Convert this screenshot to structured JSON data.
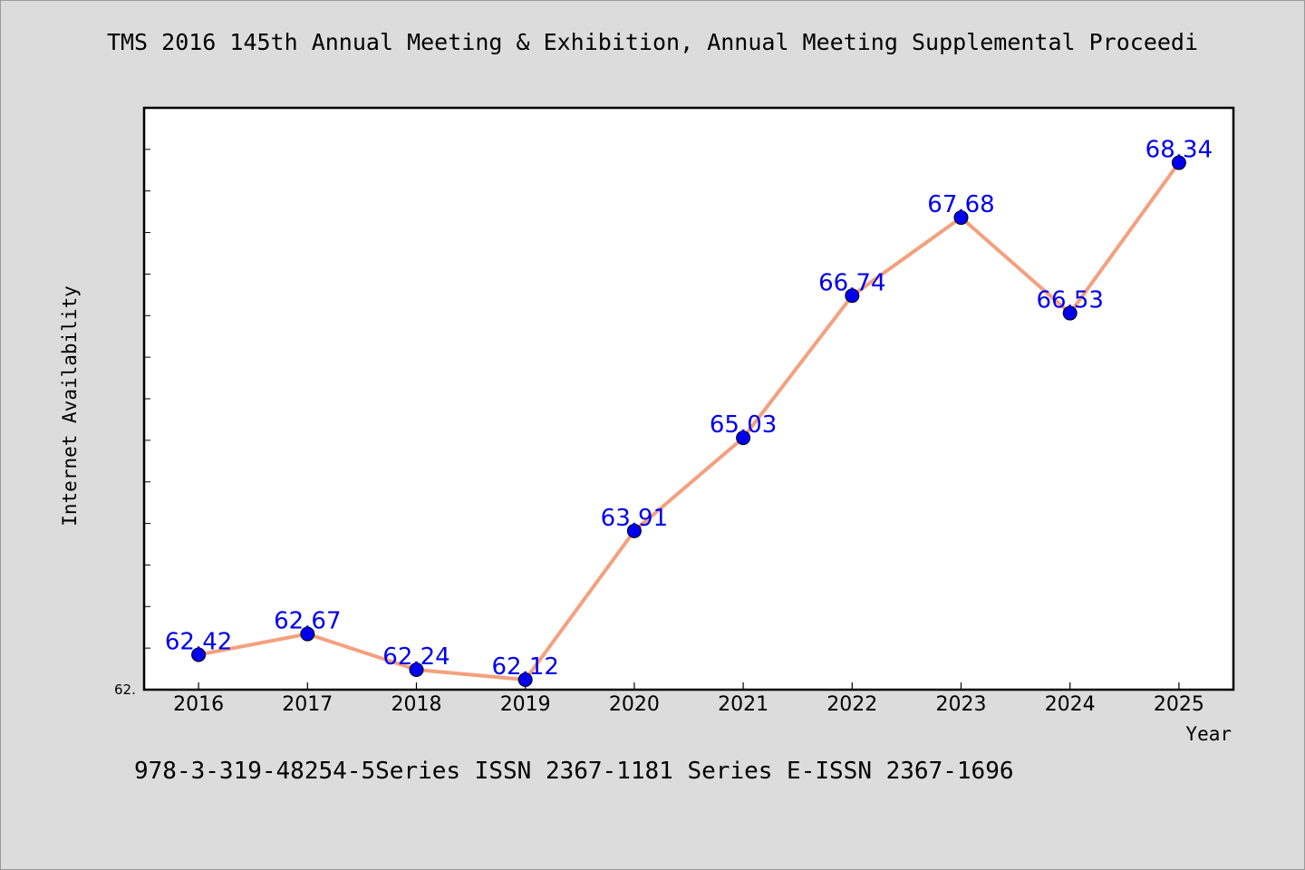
{
  "chart_data": {
    "type": "line",
    "title": "TMS 2016 145th Annual Meeting & Exhibition, Annual Meeting Supplemental Proceedi",
    "xlabel": "Year",
    "ylabel": "Internet Availability",
    "categories": [
      "2016",
      "2017",
      "2018",
      "2019",
      "2020",
      "2021",
      "2022",
      "2023",
      "2024",
      "2025"
    ],
    "series": [
      {
        "values": [
          62.42,
          62.67,
          62.24,
          62.12,
          63.91,
          65.03,
          66.74,
          67.68,
          66.53,
          68.34
        ]
      }
    ],
    "data_labels": [
      "62.42",
      "62.67",
      "62.24",
      "62.12",
      "63.91",
      "65.03",
      "66.74",
      "67.68",
      "66.53",
      "68.34"
    ],
    "y_tick_label": "62.",
    "ylim": [
      62.0,
      69.0
    ],
    "grid": false,
    "colors": {
      "line": "#f4a07e",
      "marker": "#0000ee",
      "label": "#0000ee"
    }
  },
  "footer": "978-3-319-48254-5Series ISSN 2367-1181 Series E-ISSN 2367-1696"
}
